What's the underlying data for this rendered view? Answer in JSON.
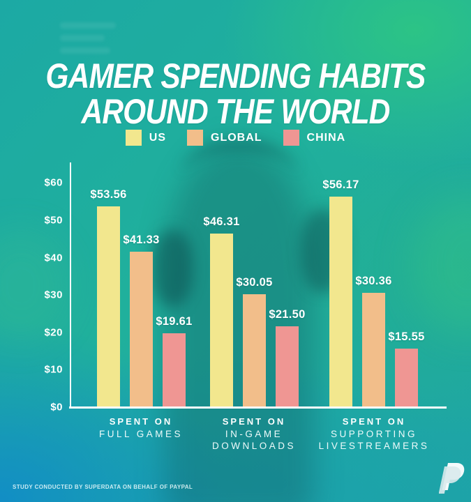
{
  "title": {
    "line1": "GAMER SPENDING HABITS",
    "line2": "AROUND THE WORLD"
  },
  "chart_data": {
    "type": "bar",
    "categories": [
      "SPENT ON FULL GAMES",
      "SPENT ON IN-GAME DOWNLOADS",
      "SPENT ON SUPPORTING LIVESTREAMERS"
    ],
    "series": [
      {
        "name": "US",
        "color": "#F2E78E",
        "values": [
          53.56,
          46.31,
          56.17
        ]
      },
      {
        "name": "GLOBAL",
        "color": "#F2BE8A",
        "values": [
          41.33,
          30.05,
          30.36
        ]
      },
      {
        "name": "CHINA",
        "color": "#EF9693",
        "values": [
          19.61,
          21.5,
          15.55
        ]
      }
    ],
    "value_labels": [
      [
        "$53.56",
        "$41.33",
        "$19.61"
      ],
      [
        "$46.31",
        "$30.05",
        "$21.50"
      ],
      [
        "$56.17",
        "$30.36",
        "$15.55"
      ]
    ],
    "category_labels": [
      {
        "top": "SPENT ON",
        "lines": [
          "FULL GAMES"
        ]
      },
      {
        "top": "SPENT ON",
        "lines": [
          "IN-GAME",
          "DOWNLOADS"
        ]
      },
      {
        "top": "SPENT ON",
        "lines": [
          "SUPPORTING",
          "LIVESTREAMERS"
        ]
      }
    ],
    "y_ticks": [
      "$60",
      "$50",
      "$40",
      "$30",
      "$20",
      "$10",
      "$0"
    ],
    "ylim": [
      0,
      60
    ],
    "grid": false,
    "legend_position": "top",
    "currency": "$"
  },
  "colors": {
    "us": "#F2E78E",
    "global": "#F2BE8A",
    "china": "#EF9693",
    "axis": "#FDFEFE",
    "background_teal": "#1EA9A2",
    "background_green": "#2EC782",
    "background_blue": "#118CC7"
  },
  "footer": {
    "source": "STUDY CONDUCTED BY SUPERDATA ON BEHALF OF PAYPAL",
    "logo": "paypal-logo"
  }
}
